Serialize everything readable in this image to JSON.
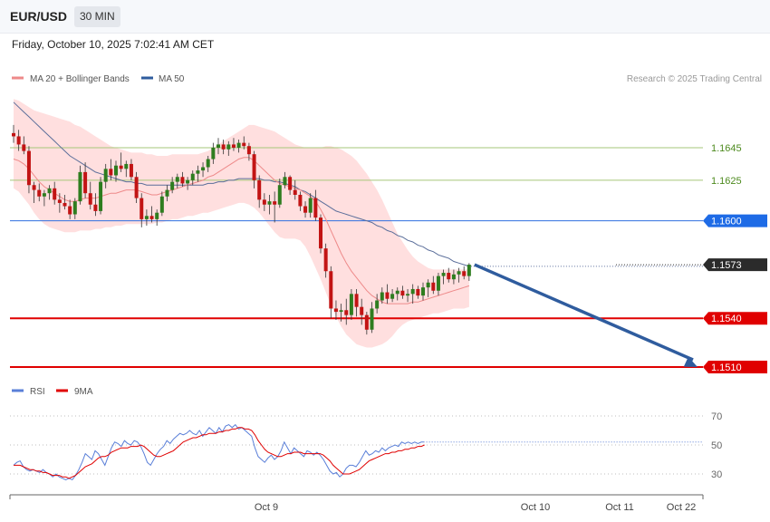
{
  "header": {
    "pair": "EUR/USD",
    "timeframe": "30 MIN"
  },
  "datetime": "Friday, October 10, 2025 7:02:41 AM CET",
  "legend": {
    "ma20": "MA 20 + Bollinger Bands",
    "ma50": "MA 50",
    "rsi": "RSI",
    "rsi_ma": "9MA"
  },
  "credit": "Research © 2025 Trading Central",
  "colors": {
    "candle_up": "#2e7d1f",
    "candle_down": "#c21414",
    "band": "#ffdcdc",
    "ma20": "#ee8a8a",
    "ma50": "#5b6e9a",
    "resistance": "#a6c77a",
    "pivot": "#2f6fe0",
    "support": "#e00000",
    "arrow": "#2f5c9e",
    "rsi": "#5a7fd8",
    "rsi_ma": "#e00000"
  },
  "chart_data": {
    "type": "line",
    "price_axis": {
      "ticks": [
        1.1645,
        1.1625,
        1.16,
        1.1573,
        1.154,
        1.151
      ],
      "ylim": [
        1.1494,
        1.1706
      ]
    },
    "x_ticks": [
      "Oct 9",
      "Oct 10",
      "Oct 11",
      "Oct 22"
    ],
    "levels": [
      {
        "price": 1.1645,
        "label": "1.1645",
        "kind": "resistance"
      },
      {
        "price": 1.1625,
        "label": "1.1625",
        "kind": "resistance"
      },
      {
        "price": 1.16,
        "label": "1.1600",
        "kind": "pivot"
      },
      {
        "price": 1.1573,
        "label": "1.1573",
        "kind": "last"
      },
      {
        "price": 1.154,
        "label": "1.1540",
        "kind": "support"
      },
      {
        "price": 1.151,
        "label": "1.1510",
        "kind": "support"
      }
    ],
    "candles": [
      [
        1.1654,
        1.1659,
        1.1648,
        1.1652
      ],
      [
        1.1652,
        1.1656,
        1.1643,
        1.1647
      ],
      [
        1.1647,
        1.1652,
        1.1641,
        1.1643
      ],
      [
        1.1643,
        1.1646,
        1.1617,
        1.1622
      ],
      [
        1.1622,
        1.1624,
        1.1611,
        1.1619
      ],
      [
        1.1619,
        1.1623,
        1.1612,
        1.1615
      ],
      [
        1.1615,
        1.1619,
        1.1609,
        1.1617
      ],
      [
        1.1617,
        1.1622,
        1.1613,
        1.162
      ],
      [
        1.162,
        1.1624,
        1.161,
        1.1613
      ],
      [
        1.1613,
        1.1617,
        1.1605,
        1.1611
      ],
      [
        1.1611,
        1.1616,
        1.1607,
        1.1609
      ],
      [
        1.1609,
        1.1613,
        1.1601,
        1.1604
      ],
      [
        1.1604,
        1.1614,
        1.1601,
        1.1612
      ],
      [
        1.1612,
        1.1634,
        1.161,
        1.163
      ],
      [
        1.163,
        1.1636,
        1.1614,
        1.1617
      ],
      [
        1.1617,
        1.1624,
        1.1607,
        1.161
      ],
      [
        1.161,
        1.1617,
        1.1603,
        1.1606
      ],
      [
        1.1606,
        1.1627,
        1.1604,
        1.1624
      ],
      [
        1.1624,
        1.1635,
        1.162,
        1.1632
      ],
      [
        1.1632,
        1.1638,
        1.1625,
        1.1628
      ],
      [
        1.1628,
        1.1637,
        1.1624,
        1.1634
      ],
      [
        1.1634,
        1.1642,
        1.163,
        1.1632
      ],
      [
        1.1632,
        1.1637,
        1.1627,
        1.1635
      ],
      [
        1.1635,
        1.1638,
        1.1625,
        1.1627
      ],
      [
        1.1627,
        1.163,
        1.1611,
        1.1614
      ],
      [
        1.1614,
        1.1617,
        1.1596,
        1.1601
      ],
      [
        1.1601,
        1.1607,
        1.1597,
        1.1603
      ],
      [
        1.1603,
        1.1609,
        1.1599,
        1.1601
      ],
      [
        1.1601,
        1.1607,
        1.1597,
        1.1605
      ],
      [
        1.1605,
        1.1618,
        1.1603,
        1.1615
      ],
      [
        1.1615,
        1.1622,
        1.1612,
        1.1619
      ],
      [
        1.1619,
        1.1627,
        1.1617,
        1.1624
      ],
      [
        1.1624,
        1.1629,
        1.162,
        1.1627
      ],
      [
        1.1627,
        1.163,
        1.1621,
        1.1623
      ],
      [
        1.1623,
        1.1627,
        1.1619,
        1.1625
      ],
      [
        1.1625,
        1.1631,
        1.1622,
        1.1629
      ],
      [
        1.1629,
        1.1634,
        1.1624,
        1.1631
      ],
      [
        1.1631,
        1.1636,
        1.1627,
        1.1633
      ],
      [
        1.1633,
        1.164,
        1.163,
        1.1638
      ],
      [
        1.1638,
        1.1648,
        1.1635,
        1.1645
      ],
      [
        1.1645,
        1.1651,
        1.1641,
        1.1647
      ],
      [
        1.1647,
        1.165,
        1.1641,
        1.1644
      ],
      [
        1.1644,
        1.1649,
        1.164,
        1.1647
      ],
      [
        1.1647,
        1.1651,
        1.1643,
        1.1645
      ],
      [
        1.1645,
        1.165,
        1.1642,
        1.1648
      ],
      [
        1.1648,
        1.1652,
        1.1644,
        1.1646
      ],
      [
        1.1646,
        1.1648,
        1.1637,
        1.1641
      ],
      [
        1.1641,
        1.1643,
        1.162,
        1.1625
      ],
      [
        1.1625,
        1.1628,
        1.1608,
        1.1613
      ],
      [
        1.1613,
        1.1617,
        1.1606,
        1.161
      ],
      [
        1.161,
        1.1616,
        1.1604,
        1.1612
      ],
      [
        1.1612,
        1.1618,
        1.1599,
        1.161
      ],
      [
        1.161,
        1.1626,
        1.1608,
        1.1622
      ],
      [
        1.1622,
        1.163,
        1.162,
        1.1627
      ],
      [
        1.1627,
        1.1628,
        1.1616,
        1.1619
      ],
      [
        1.1619,
        1.1625,
        1.1613,
        1.1616
      ],
      [
        1.1616,
        1.1618,
        1.1606,
        1.1609
      ],
      [
        1.1609,
        1.1612,
        1.1602,
        1.1605
      ],
      [
        1.1605,
        1.1617,
        1.1602,
        1.1614
      ],
      [
        1.1614,
        1.1619,
        1.16,
        1.1602
      ],
      [
        1.1602,
        1.1604,
        1.158,
        1.1583
      ],
      [
        1.1583,
        1.1586,
        1.1565,
        1.1569
      ],
      [
        1.1569,
        1.1572,
        1.154,
        1.1546
      ],
      [
        1.1546,
        1.1551,
        1.1539,
        1.1544
      ],
      [
        1.1544,
        1.1549,
        1.1538,
        1.1545
      ],
      [
        1.1545,
        1.1552,
        1.1536,
        1.1542
      ],
      [
        1.1542,
        1.1558,
        1.1539,
        1.1555
      ],
      [
        1.1555,
        1.1558,
        1.1541,
        1.1547
      ],
      [
        1.1547,
        1.1552,
        1.1536,
        1.1542
      ],
      [
        1.1542,
        1.1544,
        1.153,
        1.1533
      ],
      [
        1.1533,
        1.155,
        1.1531,
        1.1546
      ],
      [
        1.1546,
        1.1555,
        1.1543,
        1.1551
      ],
      [
        1.1551,
        1.1559,
        1.1549,
        1.1556
      ],
      [
        1.1556,
        1.1561,
        1.1549,
        1.1552
      ],
      [
        1.1552,
        1.1558,
        1.155,
        1.1555
      ],
      [
        1.1555,
        1.1559,
        1.1551,
        1.1557
      ],
      [
        1.1557,
        1.156,
        1.1552,
        1.1554
      ],
      [
        1.1554,
        1.1558,
        1.155,
        1.1555
      ],
      [
        1.1555,
        1.1561,
        1.1549,
        1.1558
      ],
      [
        1.1558,
        1.156,
        1.1552,
        1.1554
      ],
      [
        1.1554,
        1.1562,
        1.1551,
        1.1559
      ],
      [
        1.1559,
        1.1564,
        1.1553,
        1.1562
      ],
      [
        1.1562,
        1.1566,
        1.1555,
        1.1557
      ],
      [
        1.1557,
        1.1568,
        1.1554,
        1.1566
      ],
      [
        1.1566,
        1.157,
        1.1561,
        1.1568
      ],
      [
        1.1568,
        1.1571,
        1.1562,
        1.1564
      ],
      [
        1.1564,
        1.157,
        1.1561,
        1.1567
      ],
      [
        1.1567,
        1.1571,
        1.1562,
        1.1569
      ],
      [
        1.1569,
        1.1572,
        1.1564,
        1.1566
      ],
      [
        1.1566,
        1.1574,
        1.1563,
        1.1573
      ]
    ],
    "ma20": [
      1.1638,
      1.1637,
      1.1635,
      1.1632,
      1.1628,
      1.1624,
      1.1621,
      1.1619,
      1.1617,
      1.1615,
      1.1613,
      1.1612,
      1.1612,
      1.1613,
      1.1614,
      1.1614,
      1.1614,
      1.1615,
      1.1616,
      1.1617,
      1.1617,
      1.1618,
      1.1619,
      1.1619,
      1.1619,
      1.1618,
      1.1617,
      1.1616,
      1.1616,
      1.1617,
      1.1618,
      1.1619,
      1.162,
      1.1621,
      1.1622,
      1.1623,
      1.1624,
      1.1625,
      1.1627,
      1.1628,
      1.163,
      1.1632,
      1.1634,
      1.1636,
      1.1638,
      1.1639,
      1.1639,
      1.1637,
      1.1634,
      1.1631,
      1.1628,
      1.1625,
      1.1623,
      1.1622,
      1.1621,
      1.162,
      1.1619,
      1.1617,
      1.1615,
      1.1612,
      1.1607,
      1.1601,
      1.1594,
      1.1587,
      1.158,
      1.1574,
      1.1569,
      1.1565,
      1.1561,
      1.1557,
      1.1554,
      1.1552,
      1.155,
      1.1549,
      1.1549,
      1.1549,
      1.1549,
      1.1549,
      1.155,
      1.155,
      1.1551,
      1.1552,
      1.1553,
      1.1554,
      1.1555,
      1.1556,
      1.1557,
      1.1558,
      1.1559,
      1.156
    ],
    "ma50": [
      1.1673,
      1.167,
      1.1667,
      1.1664,
      1.1661,
      1.1658,
      1.1655,
      1.1652,
      1.1649,
      1.1646,
      1.1643,
      1.164,
      1.1638,
      1.1636,
      1.1634,
      1.1632,
      1.163,
      1.1629,
      1.1628,
      1.1627,
      1.1626,
      1.1625,
      1.1624,
      1.1624,
      1.1623,
      1.1623,
      1.1622,
      1.1622,
      1.1622,
      1.1622,
      1.1622,
      1.1622,
      1.1622,
      1.1622,
      1.1622,
      1.1622,
      1.1622,
      1.1622,
      1.1623,
      1.1623,
      1.1624,
      1.1624,
      1.1625,
      1.1625,
      1.1626,
      1.1626,
      1.1626,
      1.1626,
      1.1626,
      1.1625,
      1.1625,
      1.1624,
      1.1624,
      1.1623,
      1.1622,
      1.1621,
      1.1619,
      1.1618,
      1.1616,
      1.1614,
      1.1612,
      1.161,
      1.1608,
      1.1606,
      1.1605,
      1.1604,
      1.1603,
      1.1602,
      1.1601,
      1.16,
      1.1599,
      1.1597,
      1.1596,
      1.1594,
      1.1593,
      1.1591,
      1.159,
      1.1588,
      1.1587,
      1.1585,
      1.1584,
      1.1582,
      1.1581,
      1.1579,
      1.1578,
      1.1577,
      1.1575,
      1.1574,
      1.1573,
      1.1572
    ],
    "bb_upper": [
      1.1675,
      1.1674,
      1.1672,
      1.167,
      1.1668,
      1.1667,
      1.1666,
      1.1665,
      1.1664,
      1.1663,
      1.1662,
      1.1661,
      1.1659,
      1.1658,
      1.1656,
      1.1654,
      1.1652,
      1.165,
      1.1648,
      1.1646,
      1.1645,
      1.1644,
      1.1643,
      1.1642,
      1.1642,
      1.1642,
      1.1641,
      1.1641,
      1.164,
      1.164,
      1.164,
      1.1641,
      1.1641,
      1.1641,
      1.1641,
      1.1641,
      1.1641,
      1.1642,
      1.1643,
      1.1645,
      1.1647,
      1.1649,
      1.1651,
      1.1653,
      1.1655,
      1.1657,
      1.1659,
      1.1659,
      1.1658,
      1.1657,
      1.1656,
      1.1655,
      1.1653,
      1.1651,
      1.1649,
      1.1647,
      1.1646,
      1.1645,
      1.1645,
      1.1645,
      1.1645,
      1.1646,
      1.1646,
      1.1645,
      1.1644,
      1.1642,
      1.164,
      1.1637,
      1.1633,
      1.1629,
      1.1624,
      1.1619,
      1.1613,
      1.1606,
      1.1599,
      1.1592,
      1.1587,
      1.1582,
      1.1578,
      1.1575,
      1.1573,
      1.1571,
      1.157,
      1.157,
      1.157,
      1.157,
      1.157,
      1.157,
      1.157,
      1.157
    ],
    "bb_lower": [
      1.162,
      1.1618,
      1.1614,
      1.161,
      1.1605,
      1.1601,
      1.1598,
      1.1596,
      1.1595,
      1.1594,
      1.1593,
      1.1593,
      1.1593,
      1.1594,
      1.1594,
      1.1594,
      1.1595,
      1.1595,
      1.1596,
      1.1596,
      1.1597,
      1.1597,
      1.1598,
      1.1598,
      1.1598,
      1.1598,
      1.1598,
      1.1598,
      1.1599,
      1.1599,
      1.16,
      1.1601,
      1.1601,
      1.1602,
      1.1603,
      1.1603,
      1.1604,
      1.1605,
      1.1605,
      1.1606,
      1.1607,
      1.1608,
      1.1609,
      1.161,
      1.1611,
      1.1611,
      1.161,
      1.1608,
      1.1605,
      1.1601,
      1.1597,
      1.1593,
      1.159,
      1.1589,
      1.1589,
      1.1589,
      1.1588,
      1.1584,
      1.1578,
      1.1571,
      1.1564,
      1.1556,
      1.1548,
      1.1541,
      1.1535,
      1.153,
      1.1527,
      1.1524,
      1.1523,
      1.1522,
      1.1522,
      1.1523,
      1.1524,
      1.1526,
      1.1529,
      1.1533,
      1.1536,
      1.1538,
      1.1539,
      1.154,
      1.1541,
      1.1542,
      1.1543,
      1.1543,
      1.1544,
      1.1545,
      1.1546,
      1.1546,
      1.1546,
      1.1547
    ],
    "projection": {
      "from_index": 89,
      "from_price": 1.1573,
      "to_price": 1.151
    },
    "rsi_axis": {
      "ticks": [
        70,
        50,
        30
      ],
      "ylim": [
        15,
        85
      ]
    },
    "rsi": [
      36,
      38,
      39,
      35,
      33,
      32,
      33,
      32,
      31,
      33,
      31,
      30,
      28,
      30,
      28,
      27,
      26,
      27,
      26,
      29,
      33,
      38,
      44,
      42,
      40,
      46,
      44,
      40,
      36,
      42,
      48,
      52,
      51,
      49,
      53,
      51,
      50,
      53,
      52,
      49,
      44,
      38,
      36,
      40,
      44,
      47,
      49,
      53,
      51,
      54,
      56,
      58,
      57,
      58,
      60,
      58,
      57,
      60,
      56,
      59,
      62,
      60,
      58,
      62,
      59,
      63,
      64,
      62,
      64,
      61,
      62,
      60,
      58,
      56,
      48,
      42,
      40,
      38,
      41,
      43,
      40,
      42,
      46,
      52,
      48,
      44,
      48,
      46,
      44,
      42,
      46,
      45,
      43,
      45,
      43,
      40,
      36,
      32,
      30,
      31,
      28,
      30,
      34,
      36,
      36,
      35,
      38,
      42,
      46,
      43,
      44,
      46,
      45,
      48,
      46,
      48,
      49,
      50,
      49,
      52,
      51,
      52,
      51,
      52,
      51,
      52,
      52
    ],
    "rsi_ma": [
      36,
      36,
      36,
      35,
      34,
      33,
      33,
      32,
      32,
      31,
      31,
      30,
      29,
      29,
      29,
      28,
      28,
      27,
      28,
      29,
      31,
      33,
      35,
      36,
      37,
      39,
      41,
      42,
      42,
      43,
      45,
      46,
      47,
      48,
      48,
      48,
      49,
      49,
      49,
      50,
      49,
      47,
      45,
      43,
      42,
      42,
      43,
      44,
      45,
      46,
      48,
      50,
      52,
      53,
      54,
      55,
      55,
      56,
      57,
      57,
      58,
      58,
      58,
      59,
      59,
      60,
      60,
      61,
      61,
      62,
      62,
      61,
      61,
      60,
      57,
      53,
      50,
      47,
      45,
      44,
      43,
      42,
      42,
      43,
      44,
      44,
      45,
      45,
      45,
      44,
      44,
      44,
      44,
      44,
      44,
      43,
      41,
      39,
      36,
      34,
      32,
      30,
      30,
      30,
      31,
      32,
      33,
      35,
      37,
      39,
      40,
      41,
      42,
      43,
      44,
      44,
      45,
      45,
      46,
      46,
      47,
      47,
      48,
      48,
      49,
      49,
      50
    ]
  }
}
